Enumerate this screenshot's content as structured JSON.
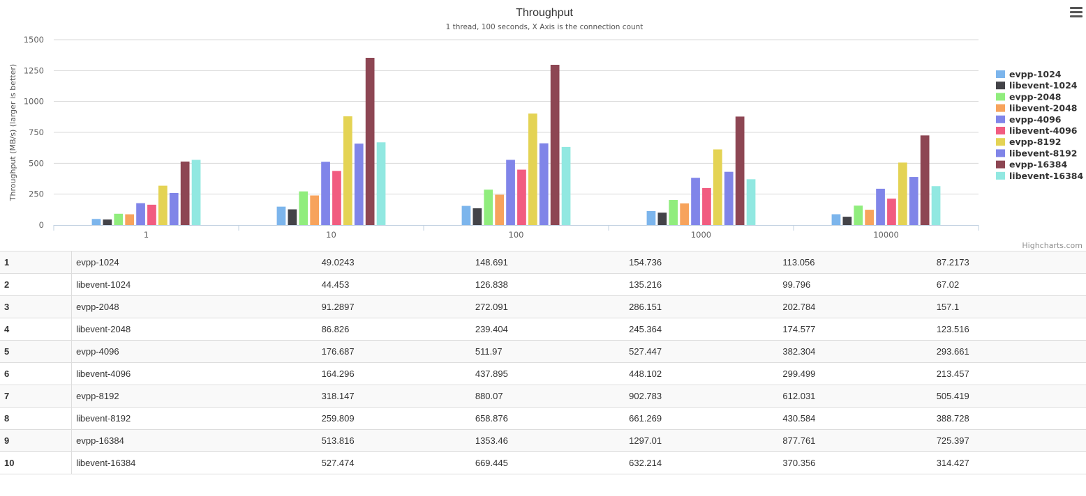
{
  "chart_data": {
    "type": "bar",
    "title": "Throughput",
    "subtitle": "1 thread, 100 seconds, X Axis is the connection count",
    "ylabel": "Throughput (MB/s) (larger is better)",
    "xlabel": "",
    "categories": [
      "1",
      "10",
      "100",
      "1000",
      "10000"
    ],
    "yticks": [
      "0",
      "250",
      "500",
      "750",
      "1000",
      "1250",
      "1500"
    ],
    "ylim": [
      0,
      1500
    ],
    "legend_position": "right",
    "credits": "Highcharts.com",
    "series": [
      {
        "name": "evpp-1024",
        "color": "#7cb5ec",
        "values": [
          49.0243,
          148.691,
          154.736,
          113.056,
          87.2173
        ]
      },
      {
        "name": "libevent-1024",
        "color": "#434348",
        "values": [
          44.453,
          126.838,
          135.216,
          99.796,
          67.02
        ]
      },
      {
        "name": "evpp-2048",
        "color": "#90ed7d",
        "values": [
          91.2897,
          272.091,
          286.151,
          202.784,
          157.1
        ]
      },
      {
        "name": "libevent-2048",
        "color": "#f7a35c",
        "values": [
          86.826,
          239.404,
          245.364,
          174.577,
          123.516
        ]
      },
      {
        "name": "evpp-4096",
        "color": "#8085e9",
        "values": [
          176.687,
          511.97,
          527.447,
          382.304,
          293.661
        ]
      },
      {
        "name": "libevent-4096",
        "color": "#f15c80",
        "values": [
          164.296,
          437.895,
          448.102,
          299.499,
          213.457
        ]
      },
      {
        "name": "evpp-8192",
        "color": "#e4d354",
        "values": [
          318.147,
          880.07,
          902.783,
          612.031,
          505.419
        ]
      },
      {
        "name": "libevent-8192",
        "color": "#8085e8",
        "values": [
          259.809,
          658.876,
          661.269,
          430.584,
          388.728
        ]
      },
      {
        "name": "evpp-16384",
        "color": "#8d4653",
        "values": [
          513.816,
          1353.46,
          1297.01,
          877.761,
          725.397
        ]
      },
      {
        "name": "libevent-16384",
        "color": "#91e8e1",
        "values": [
          527.474,
          669.445,
          632.214,
          370.356,
          314.427
        ]
      }
    ]
  },
  "table": {
    "rows": [
      [
        "1",
        "evpp-1024",
        "49.0243",
        "148.691",
        "154.736",
        "113.056",
        "87.2173"
      ],
      [
        "2",
        "libevent-1024",
        "44.453",
        "126.838",
        "135.216",
        "99.796",
        "67.02"
      ],
      [
        "3",
        "evpp-2048",
        "91.2897",
        "272.091",
        "286.151",
        "202.784",
        "157.1"
      ],
      [
        "4",
        "libevent-2048",
        "86.826",
        "239.404",
        "245.364",
        "174.577",
        "123.516"
      ],
      [
        "5",
        "evpp-4096",
        "176.687",
        "511.97",
        "527.447",
        "382.304",
        "293.661"
      ],
      [
        "6",
        "libevent-4096",
        "164.296",
        "437.895",
        "448.102",
        "299.499",
        "213.457"
      ],
      [
        "7",
        "evpp-8192",
        "318.147",
        "880.07",
        "902.783",
        "612.031",
        "505.419"
      ],
      [
        "8",
        "libevent-8192",
        "259.809",
        "658.876",
        "661.269",
        "430.584",
        "388.728"
      ],
      [
        "9",
        "evpp-16384",
        "513.816",
        "1353.46",
        "1297.01",
        "877.761",
        "725.397"
      ],
      [
        "10",
        "libevent-16384",
        "527.474",
        "669.445",
        "632.214",
        "370.356",
        "314.427"
      ]
    ]
  }
}
